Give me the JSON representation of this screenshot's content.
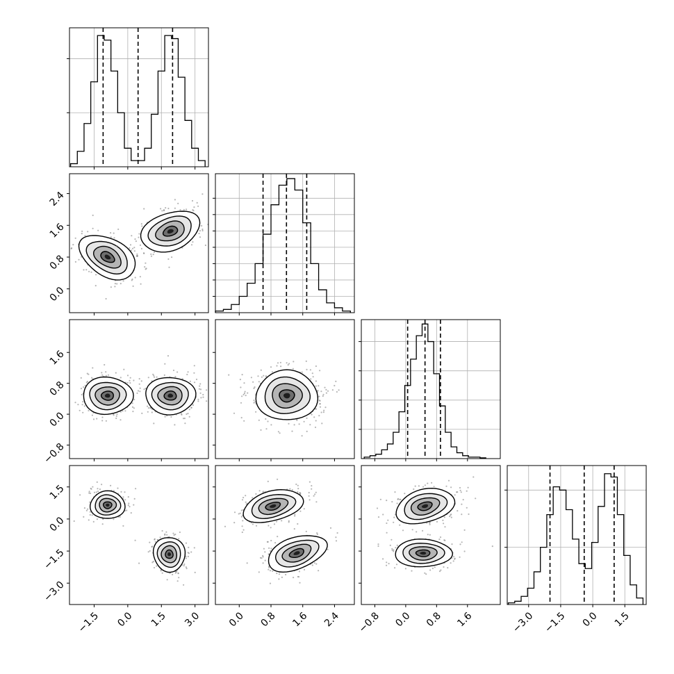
{
  "figure": {
    "kind": "corner-plot",
    "dimensions": 4
  },
  "colors": {
    "ink": "#000000",
    "grid": "#b0b0b0",
    "scatter": "#7a7a7a"
  },
  "chart_data": [
    {
      "type": "histogram",
      "panel": "hist-0",
      "x_range": [
        -2.6,
        3.6
      ],
      "bins": [
        -2.4,
        -2.1,
        -1.8,
        -1.5,
        -1.2,
        -0.9,
        -0.6,
        -0.3,
        0.0,
        0.3,
        0.6,
        0.9,
        1.2,
        1.5,
        1.8,
        2.1,
        2.4,
        2.7,
        3.0,
        3.3
      ],
      "counts": [
        0.02,
        0.1,
        0.28,
        0.55,
        0.85,
        0.82,
        0.62,
        0.35,
        0.12,
        0.04,
        0.04,
        0.12,
        0.34,
        0.62,
        0.85,
        0.83,
        0.58,
        0.3,
        0.12,
        0.04
      ],
      "ymax": 0.9,
      "y_ticks": [
        0.35,
        0.7
      ],
      "quantiles": [
        -1.1,
        0.46,
        2.0
      ],
      "x_ticks": [
        -1.5,
        0.0,
        1.5,
        3.0
      ]
    },
    {
      "type": "histogram",
      "panel": "hist-1",
      "x_range": [
        -0.6,
        2.9
      ],
      "bins": [
        -0.5,
        -0.3,
        -0.1,
        0.1,
        0.3,
        0.5,
        0.7,
        0.9,
        1.1,
        1.3,
        1.5,
        1.7,
        1.9,
        2.1,
        2.3,
        2.5,
        2.7
      ],
      "counts": [
        0.01,
        0.02,
        0.05,
        0.1,
        0.18,
        0.3,
        0.48,
        0.66,
        0.78,
        0.82,
        0.75,
        0.55,
        0.3,
        0.14,
        0.06,
        0.03,
        0.01
      ],
      "ymax": 0.85,
      "y_ticks": [
        0.1,
        0.2,
        0.3,
        0.4,
        0.5,
        0.6,
        0.7
      ],
      "quantiles": [
        0.6,
        1.19,
        1.7
      ],
      "x_ticks": [
        0.0,
        0.8,
        1.6,
        2.4
      ]
    },
    {
      "type": "histogram",
      "panel": "hist-2",
      "x_range": [
        -1.15,
        2.45
      ],
      "bins": [
        -1.0,
        -0.85,
        -0.7,
        -0.55,
        -0.4,
        -0.25,
        -0.1,
        0.05,
        0.2,
        0.35,
        0.5,
        0.65,
        0.8,
        0.95,
        1.1,
        1.25,
        1.4,
        1.55,
        1.7,
        1.85,
        2.0
      ],
      "counts": [
        0.01,
        0.02,
        0.03,
        0.06,
        0.1,
        0.18,
        0.32,
        0.5,
        0.68,
        0.84,
        0.92,
        0.8,
        0.58,
        0.36,
        0.18,
        0.08,
        0.04,
        0.02,
        0.01,
        0.01,
        0.005
      ],
      "ymax": 0.95,
      "y_ticks": [
        0.2,
        0.4,
        0.6,
        0.8
      ],
      "quantiles": [
        0.05,
        0.5,
        0.9
      ],
      "x_ticks": [
        -0.8,
        0.0,
        0.8,
        1.6
      ]
    },
    {
      "type": "histogram",
      "panel": "hist-3",
      "x_range": [
        -4.0,
        2.5
      ],
      "bins": [
        -3.8,
        -3.5,
        -3.2,
        -2.9,
        -2.6,
        -2.3,
        -2.0,
        -1.7,
        -1.4,
        -1.1,
        -0.8,
        -0.5,
        -0.2,
        0.1,
        0.4,
        0.7,
        1.0,
        1.3,
        1.6,
        1.9,
        2.2
      ],
      "counts": [
        0.01,
        0.02,
        0.05,
        0.1,
        0.2,
        0.35,
        0.55,
        0.72,
        0.7,
        0.58,
        0.4,
        0.25,
        0.22,
        0.38,
        0.6,
        0.8,
        0.78,
        0.55,
        0.3,
        0.12,
        0.04
      ],
      "ymax": 0.85,
      "y_ticks": [
        0.35,
        0.7
      ],
      "quantiles": [
        -2.0,
        -0.4,
        1.0
      ],
      "x_ticks": [
        -3.0,
        -1.5,
        0.0,
        1.5
      ]
    },
    {
      "type": "scatter",
      "panel": "pair-1-0",
      "xlim": [
        -2.6,
        3.6
      ],
      "ylim": [
        -0.6,
        2.9
      ],
      "components": [
        {
          "center": [
            -0.9,
            0.8
          ],
          "sd": [
            0.45,
            0.5
          ],
          "angle_deg": -60
        },
        {
          "center": [
            1.9,
            1.45
          ],
          "sd": [
            0.45,
            0.5
          ],
          "angle_deg": 70
        }
      ],
      "x_ticks": [
        -1.5,
        0.0,
        1.5,
        3.0
      ],
      "y_ticks": [
        0.0,
        0.8,
        1.6,
        2.4
      ]
    },
    {
      "type": "scatter",
      "panel": "pair-2-0",
      "xlim": [
        -2.6,
        3.6
      ],
      "ylim": [
        -1.15,
        2.45
      ],
      "components": [
        {
          "center": [
            -0.9,
            0.48
          ],
          "sd": [
            0.45,
            0.42
          ],
          "angle_deg": 90
        },
        {
          "center": [
            1.9,
            0.48
          ],
          "sd": [
            0.45,
            0.42
          ],
          "angle_deg": 90
        }
      ],
      "x_ticks": [
        -1.5,
        0.0,
        1.5,
        3.0
      ],
      "y_ticks": [
        -0.8,
        0.0,
        0.8,
        1.6
      ]
    },
    {
      "type": "scatter",
      "panel": "pair-2-1",
      "xlim": [
        -0.6,
        2.9
      ],
      "ylim": [
        -1.15,
        2.45
      ],
      "components": [
        {
          "center": [
            1.2,
            0.48
          ],
          "sd": [
            0.42,
            0.42
          ],
          "angle_deg": 0
        }
      ],
      "x_ticks": [
        0.0,
        0.8,
        1.6,
        2.4
      ],
      "y_ticks": [
        -0.8,
        0.0,
        0.8,
        1.6
      ]
    },
    {
      "type": "scatter",
      "panel": "pair-3-0",
      "xlim": [
        -2.6,
        3.6
      ],
      "ylim": [
        -4.0,
        2.5
      ],
      "components": [
        {
          "center": [
            -0.9,
            0.65
          ],
          "sd": [
            0.42,
            0.42
          ],
          "angle_deg": 0
        },
        {
          "center": [
            1.85,
            -1.65
          ],
          "sd": [
            0.42,
            0.48
          ],
          "angle_deg": 80
        }
      ],
      "x_ticks": [
        -1.5,
        0.0,
        1.5,
        3.0
      ],
      "y_ticks": [
        -3.0,
        -1.5,
        0.0,
        1.5
      ]
    },
    {
      "type": "scatter",
      "panel": "pair-3-1",
      "xlim": [
        -0.6,
        2.9
      ],
      "ylim": [
        -4.0,
        2.5
      ],
      "components": [
        {
          "center": [
            0.85,
            0.6
          ],
          "sd": [
            0.42,
            0.45
          ],
          "angle_deg": -15
        },
        {
          "center": [
            1.45,
            -1.6
          ],
          "sd": [
            0.42,
            0.48
          ],
          "angle_deg": -20
        }
      ],
      "x_ticks": [
        0.0,
        0.8,
        1.6,
        2.4
      ],
      "y_ticks": [
        -3.0,
        -1.5,
        0.0,
        1.5
      ]
    },
    {
      "type": "scatter",
      "panel": "pair-3-2",
      "xlim": [
        -1.15,
        2.45
      ],
      "ylim": [
        -4.0,
        2.5
      ],
      "components": [
        {
          "center": [
            0.5,
            0.6
          ],
          "sd": [
            0.42,
            0.5
          ],
          "angle_deg": -15
        },
        {
          "center": [
            0.45,
            -1.6
          ],
          "sd": [
            0.4,
            0.42
          ],
          "angle_deg": 0
        }
      ],
      "x_ticks": [
        -0.8,
        0.0,
        0.8,
        1.6
      ],
      "y_ticks": [
        -3.0,
        -1.5,
        0.0,
        1.5
      ]
    }
  ],
  "axis_tick_labels": {
    "x_col0": [
      "−1.5",
      "0.0",
      "1.5",
      "3.0"
    ],
    "x_col1": [
      "0.0",
      "0.8",
      "1.6",
      "2.4"
    ],
    "x_col2": [
      "−0.8",
      "0.0",
      "0.8",
      "1.6"
    ],
    "x_col3": [
      "−3.0",
      "−1.5",
      "0.0",
      "1.5"
    ],
    "y_row1": [
      "0.0",
      "0.8",
      "1.6",
      "2.4"
    ],
    "y_row2": [
      "−0.8",
      "0.0",
      "0.8",
      "1.6"
    ],
    "y_row3": [
      "−3.0",
      "−1.5",
      "0.0",
      "1.5"
    ]
  }
}
